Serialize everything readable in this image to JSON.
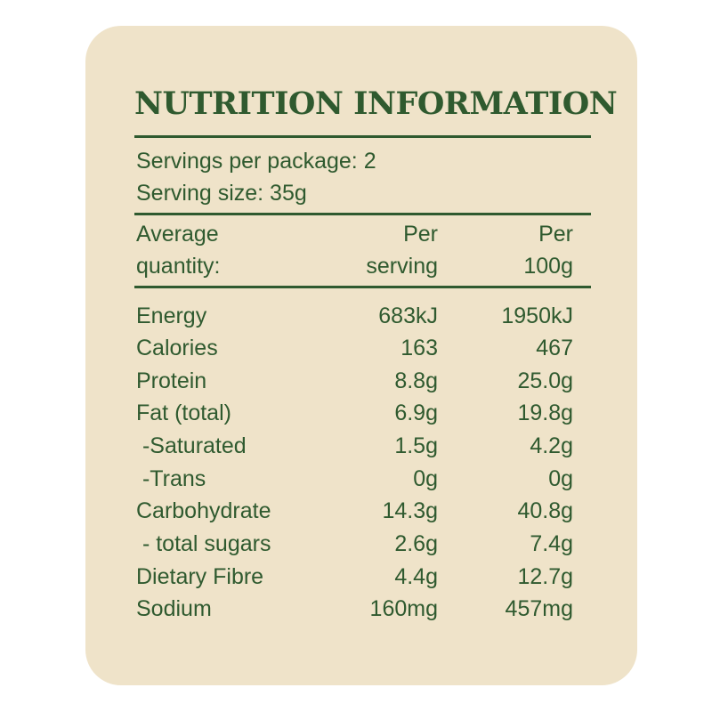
{
  "title": "NUTRITION INFORMATION",
  "servings_per_package": "Servings per package: 2",
  "serving_size": "Serving size: 35g",
  "header": {
    "quantity_line1": "Average",
    "quantity_line2": "quantity:",
    "per_serving_line1": "Per",
    "per_serving_line2": "serving",
    "per_100g_line1": "Per",
    "per_100g_line2": "100g"
  },
  "rows": [
    {
      "name": "Energy",
      "per_serving": "683kJ",
      "per_100g": "1950kJ"
    },
    {
      "name": "Calories",
      "per_serving": "163",
      "per_100g": "467"
    },
    {
      "name": "Protein",
      "per_serving": "8.8g",
      "per_100g": "25.0g"
    },
    {
      "name": "Fat (total)",
      "per_serving": "6.9g",
      "per_100g": "19.8g"
    },
    {
      "name": " -Saturated",
      "per_serving": "1.5g",
      "per_100g": "4.2g"
    },
    {
      "name": " -Trans",
      "per_serving": "0g",
      "per_100g": "0g"
    },
    {
      "name": "Carbohydrate",
      "per_serving": "14.3g",
      "per_100g": "40.8g"
    },
    {
      "name": " - total sugars",
      "per_serving": "2.6g",
      "per_100g": "7.4g"
    },
    {
      "name": "Dietary Fibre",
      "per_serving": "4.4g",
      "per_100g": "12.7g"
    },
    {
      "name": "Sodium",
      "per_serving": "160mg",
      "per_100g": "457mg"
    }
  ],
  "colors": {
    "panel": "#efe3c9",
    "ink": "#2f5a2f"
  }
}
